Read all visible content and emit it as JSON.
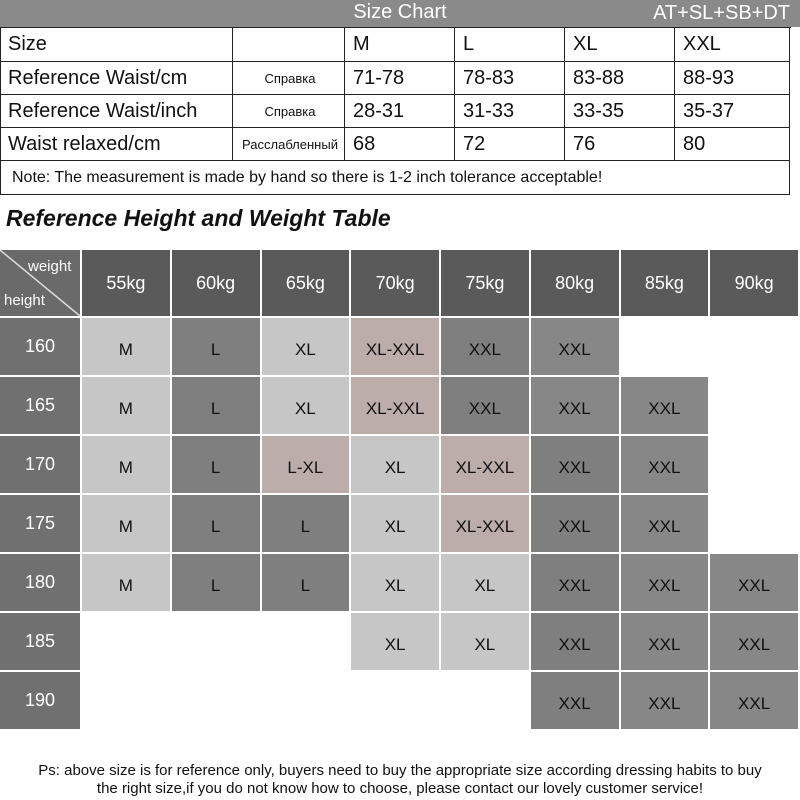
{
  "size_chart": {
    "title": "Size Chart",
    "models": "AT+SL+SB+DT",
    "size_label": "Size",
    "sizes": [
      "M",
      "L",
      "XL",
      "XXL"
    ],
    "rows": [
      {
        "label": "Reference Waist/cm",
        "note": "Справка",
        "values": [
          "71-78",
          "78-83",
          "83-88",
          "88-93"
        ]
      },
      {
        "label": "Reference Waist/inch",
        "note": "Справка",
        "values": [
          "28-31",
          "31-33",
          "33-35",
          "35-37"
        ]
      },
      {
        "label": "Waist relaxed/cm",
        "note": "Расслабленный",
        "values": [
          "68",
          "72",
          "76",
          "80"
        ]
      }
    ],
    "note": "Note: The measurement is made by hand so there is 1-2 inch tolerance acceptable!"
  },
  "height_weight_table": {
    "title": "Reference Height and Weight Table",
    "corner_weight": "weight",
    "corner_height": "height",
    "weights": [
      "55kg",
      "60kg",
      "65kg",
      "70kg",
      "75kg",
      "80kg",
      "85kg",
      "90kg"
    ],
    "rows": [
      {
        "height": "160",
        "sizes": [
          "M",
          "L",
          "XL",
          "XL-XXL",
          "XXL",
          "XXL",
          null,
          null
        ],
        "colors": [
          "#c6c6c6",
          "#7f7f7f",
          "#c6c6c6",
          "#bcadab",
          "#7f7f7f",
          "#878787",
          null,
          null
        ]
      },
      {
        "height": "165",
        "sizes": [
          "M",
          "L",
          "XL",
          "XL-XXL",
          "XXL",
          "XXL",
          "XXL",
          null
        ],
        "colors": [
          "#c6c6c6",
          "#7f7f7f",
          "#c6c6c6",
          "#bcadab",
          "#7f7f7f",
          "#878787",
          "#878787",
          null
        ]
      },
      {
        "height": "170",
        "sizes": [
          "M",
          "L",
          "L-XL",
          "XL",
          "XL-XXL",
          "XXL",
          "XXL",
          null
        ],
        "colors": [
          "#c6c6c6",
          "#7f7f7f",
          "#bcadab",
          "#c6c6c6",
          "#bcadab",
          "#7f7f7f",
          "#878787",
          null
        ]
      },
      {
        "height": "175",
        "sizes": [
          "M",
          "L",
          "L",
          "XL",
          "XL-XXL",
          "XXL",
          "XXL",
          null
        ],
        "colors": [
          "#c6c6c6",
          "#7f7f7f",
          "#7f7f7f",
          "#c6c6c6",
          "#bcadab",
          "#7f7f7f",
          "#878787",
          null
        ]
      },
      {
        "height": "180",
        "sizes": [
          "M",
          "L",
          "L",
          "XL",
          "XL",
          "XXL",
          "XXL",
          "XXL"
        ],
        "colors": [
          "#c6c6c6",
          "#7f7f7f",
          "#7f7f7f",
          "#c6c6c6",
          "#c6c6c6",
          "#7f7f7f",
          "#878787",
          "#878787"
        ]
      },
      {
        "height": "185",
        "sizes": [
          null,
          null,
          null,
          "XL",
          "XL",
          "XXL",
          "XXL",
          "XXL"
        ],
        "colors": [
          null,
          null,
          null,
          "#c6c6c6",
          "#c6c6c6",
          "#7f7f7f",
          "#878787",
          "#878787"
        ]
      },
      {
        "height": "190",
        "sizes": [
          null,
          null,
          null,
          null,
          null,
          "XXL",
          "XXL",
          "XXL"
        ],
        "colors": [
          null,
          null,
          null,
          null,
          null,
          "#7f7f7f",
          "#878787",
          "#878787"
        ]
      }
    ]
  },
  "footer": {
    "lines": [
      "Ps: above size is for reference only, buyers need to buy the appropriate size according dressing habits to buy",
      "the right size,if you do not know how to choose, please contact our lovely customer service!"
    ]
  }
}
